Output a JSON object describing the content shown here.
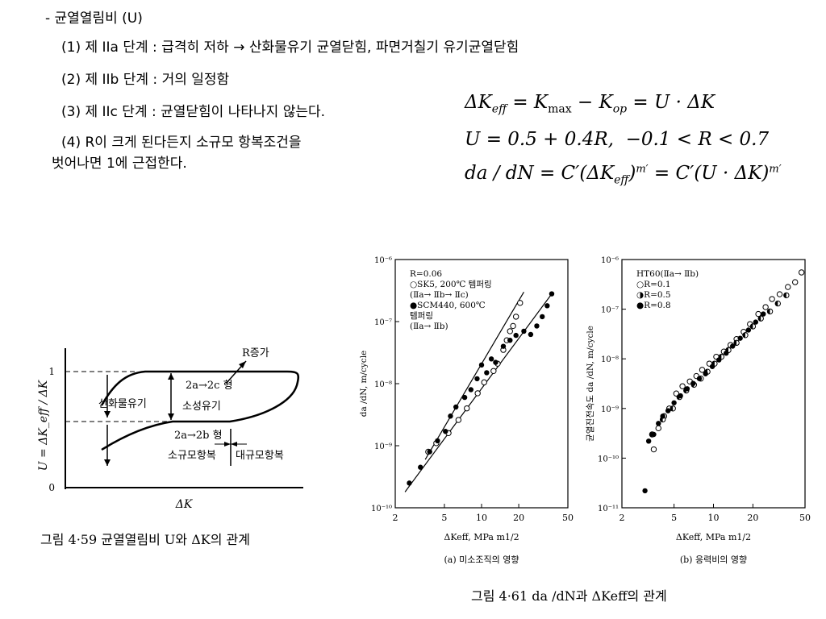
{
  "text": {
    "title": "- 균열열림비 (U)",
    "item1": "(1) 제 IIa 단계 : 급격히 저하 → 산화물유기 균열닫힘, 파면거칠기 유기균열닫힘",
    "item2": "(2) 제 IIb 단계 : 거의 일정함",
    "item3": "(3) 제 IIc 단계 : 균열닫힘이 나타나지 않는다.",
    "item4a": "(4) R이 크게 된다든지 소규모 항복조건을",
    "item4b": "벗어나면 1에 근접한다."
  },
  "equations": {
    "eq1": "ΔK_eff = K_max − K_op = U · ΔK",
    "eq2": "U = 0.5 + 0.4R,  −0.1 < R < 0.7",
    "eq3": "da / dN = C′(ΔK_eff)^m′ = C′(U · ΔK)^m′"
  },
  "fig459": {
    "ylabel": "U = ΔK_eff / ΔK",
    "xlabel": "ΔK",
    "tick_1": "1",
    "tick_0": "0",
    "label_r": "R증가",
    "label_2c": "2a→2c 형",
    "label_oxide": "산화물유기",
    "label_plastic": "소성유기",
    "label_2b": "2a→2b 형",
    "label_small": "소규모항복",
    "label_large": "대규모항복",
    "caption": "그림 4·59   균열열림비 U와 ΔK의 관계"
  },
  "fig461_caption": "그림 4·61   da /dN과 ΔKeff의 관계",
  "chart_data": [
    {
      "type": "scatter",
      "subcaption": "(a) 미소조직의 영향",
      "xlabel": "ΔKeff, MPa m1/2",
      "ylabel": "da /dN, m/cycle",
      "xscale": "log",
      "yscale": "log",
      "xlim": [
        2,
        50
      ],
      "ylim": [
        1e-10,
        1e-06
      ],
      "xticks": [
        "2",
        "5",
        "10",
        "20",
        "50"
      ],
      "yticks": [
        "10⁻¹⁰",
        "10⁻⁹",
        "10⁻⁸",
        "10⁻⁷",
        "10⁻⁶"
      ],
      "legend": [
        "R=0.06",
        "○SK5, 200℃ 템퍼링",
        "(Ⅱa→ Ⅱb→ Ⅱc)",
        "●SCM440, 600℃",
        "템퍼링",
        "(Ⅱa→ Ⅱb)"
      ],
      "series": [
        {
          "name": "SK5, 200℃ 템퍼링",
          "marker": "open",
          "x": [
            3.7,
            4.3,
            5.4,
            6.5,
            7.6,
            9.3,
            10.5,
            12.5,
            13.5,
            15,
            16,
            17,
            18,
            19,
            20.5
          ],
          "y": [
            8e-10,
            1.1e-09,
            1.6e-09,
            2.6e-09,
            4e-09,
            7e-09,
            1.05e-08,
            1.6e-08,
            2.1e-08,
            3.5e-08,
            5e-08,
            7e-08,
            8.5e-08,
            1.2e-07,
            2e-07
          ]
        },
        {
          "name": "SCM440, 600℃ 템퍼링",
          "marker": "filled",
          "x": [
            2.6,
            3.2,
            3.8,
            4.4,
            5.1,
            5.6,
            6.2,
            7.3,
            8.2,
            9.2,
            10,
            11,
            12,
            13,
            15,
            17,
            19,
            22,
            25,
            28,
            31,
            34,
            37
          ],
          "y": [
            2.5e-10,
            4.5e-10,
            8e-10,
            1.2e-09,
            1.7e-09,
            3e-09,
            4.2e-09,
            6e-09,
            8e-09,
            1.2e-08,
            2e-08,
            1.5e-08,
            2.5e-08,
            2.2e-08,
            4e-08,
            5e-08,
            6e-08,
            7e-08,
            6.2e-08,
            8.5e-08,
            1.2e-07,
            1.8e-07,
            2.8e-07
          ]
        }
      ]
    },
    {
      "type": "scatter",
      "subcaption": "(b) 응력비의 영향",
      "xlabel": "ΔKeff, MPa m1/2",
      "ylabel": "균열진전속도 da /dN, m/cycle",
      "xscale": "log",
      "yscale": "log",
      "xlim": [
        2,
        50
      ],
      "ylim": [
        1e-11,
        1e-06
      ],
      "xticks": [
        "2",
        "5",
        "10",
        "20",
        "50"
      ],
      "yticks": [
        "10⁻¹¹",
        "10⁻¹⁰",
        "10⁻⁹",
        "10⁻⁸",
        "10⁻⁷",
        "10⁻⁶"
      ],
      "legend": [
        "HT60(Ⅱa→ Ⅱb)",
        "○R=0.1",
        "◑R=0.5",
        "●R=0.8"
      ],
      "series": [
        {
          "name": "R=0.1",
          "marker": "open",
          "x": [
            3.5,
            3.8,
            4.2,
            4.6,
            5.2,
            5.8,
            6.6,
            7.4,
            8.2,
            9.3,
            10.5,
            12,
            13.5,
            15,
            17,
            19,
            22,
            25,
            28,
            32,
            37,
            42,
            47
          ],
          "y": [
            1.5e-10,
            4e-10,
            7e-10,
            1e-09,
            2e-09,
            2.8e-09,
            3.5e-09,
            4.5e-09,
            6e-09,
            8e-09,
            1.1e-08,
            1.4e-08,
            1.9e-08,
            2.5e-08,
            3.5e-08,
            5e-08,
            8e-08,
            1.1e-07,
            1.6e-07,
            2e-07,
            2.8e-07,
            3.5e-07,
            5.5e-07
          ]
        },
        {
          "name": "R=0.5",
          "marker": "half",
          "x": [
            3.4,
            4.1,
            4.9,
            5.5,
            6.2,
            7.1,
            8,
            9,
            10.2,
            11.5,
            13,
            15,
            17.5,
            20,
            23,
            27,
            31,
            36
          ],
          "y": [
            3e-10,
            6e-10,
            1e-09,
            1.7e-09,
            2.3e-09,
            3e-09,
            4e-09,
            5.5e-09,
            8e-09,
            1.1e-08,
            1.5e-08,
            2.1e-08,
            3e-08,
            4.5e-08,
            6.5e-08,
            9e-08,
            1.3e-07,
            1.9e-07
          ]
        },
        {
          "name": "R=0.8",
          "marker": "filled",
          "x": [
            3,
            3.2,
            3.5,
            3.8,
            4.1,
            4.5,
            5,
            5.6,
            6.3,
            7,
            7.8,
            8.7,
            9.8,
            11,
            12.5,
            14,
            16,
            18.5,
            21,
            24
          ],
          "y": [
            2.2e-11,
            2.2e-10,
            3e-10,
            5e-10,
            7e-10,
            9e-10,
            1.3e-09,
            1.8e-09,
            2.5e-09,
            3.2e-09,
            4e-09,
            5e-09,
            7e-09,
            9.5e-09,
            1.3e-08,
            1.8e-08,
            2.6e-08,
            3.8e-08,
            5.5e-08,
            8e-08
          ]
        }
      ]
    }
  ]
}
